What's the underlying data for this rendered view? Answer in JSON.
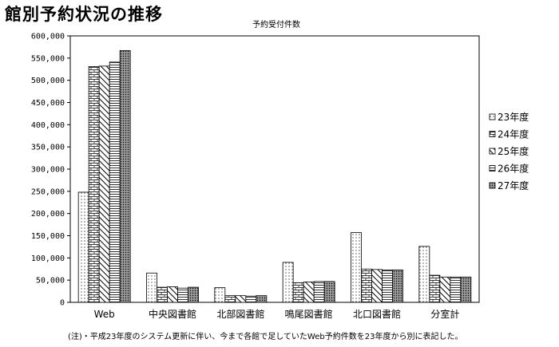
{
  "page_title": "館別予約状況の推移",
  "note": "(注)・平成23年度のシステム更新に伴い、今まで各館で足していたWeb予約件数を23年度から別に表記した。",
  "chart_data": {
    "type": "bar",
    "title": "",
    "ylabel": "予約受付件数",
    "xlabel": "",
    "categories": [
      "Web",
      "中央図書館",
      "北部図書館",
      "鳴尾図書館",
      "北口図書館",
      "分室計"
    ],
    "ylim": [
      0,
      600000
    ],
    "yticks": [
      0,
      50000,
      100000,
      150000,
      200000,
      250000,
      300000,
      350000,
      400000,
      450000,
      500000,
      550000,
      600000
    ],
    "ytick_labels": [
      "0",
      "50,000",
      "100,000",
      "150,000",
      "200,000",
      "250,000",
      "300,000",
      "350,000",
      "400,000",
      "450,000",
      "500,000",
      "550,000",
      "600,000"
    ],
    "grid": false,
    "legend_position": "right",
    "series": [
      {
        "name": "23年度",
        "pattern": "dots",
        "values": [
          248000,
          66000,
          33000,
          90000,
          157000,
          126000
        ]
      },
      {
        "name": "24年度",
        "pattern": "bricks",
        "values": [
          531000,
          34000,
          15000,
          44000,
          75000,
          61000
        ]
      },
      {
        "name": "25年度",
        "pattern": "diagonal",
        "values": [
          532000,
          35000,
          15000,
          46000,
          74000,
          57000
        ]
      },
      {
        "name": "26年度",
        "pattern": "horizontal",
        "values": [
          541000,
          32000,
          14000,
          47000,
          73000,
          57000
        ]
      },
      {
        "name": "27年度",
        "pattern": "dense-dots",
        "values": [
          567000,
          34000,
          15000,
          47000,
          73000,
          57000
        ]
      }
    ]
  }
}
